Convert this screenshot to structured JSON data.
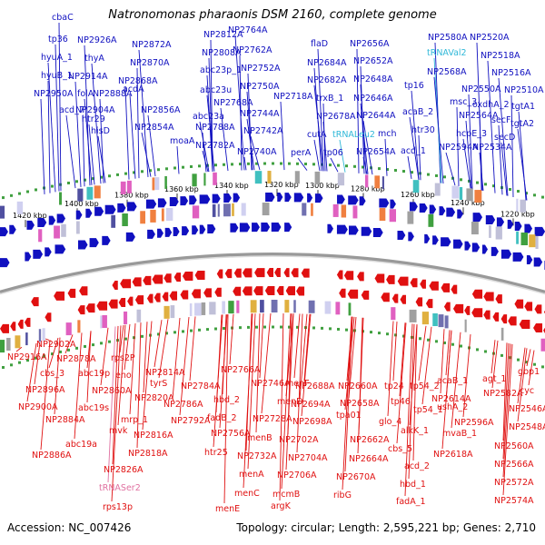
{
  "title": "Natronomonas pharaonis DSM 2160, complete genome",
  "footer": {
    "accession": "Accession: NC_007426",
    "summary": "Topology: circular; Length: 2,595,221 bp; Genes: 2,710"
  },
  "colors": {
    "forward_gene": "#1010c0",
    "reverse_gene": "#e01010",
    "trna": "#30b8d8",
    "trna_reverse": "#e070a0",
    "backbone": "#888888"
  },
  "kbp_ticks": [
    "1420 kbp",
    "1400 kbp",
    "1380 kbp",
    "1360 kbp",
    "1340 kbp",
    "1320 kbp",
    "1300 kbp",
    "1280 kbp",
    "1260 kbp",
    "1240 kbp",
    "1220 kbp"
  ],
  "top_labels": [
    "cbaC",
    "tp36",
    "NP2926A",
    "hyuA_1",
    "thyA",
    "hyuB_1",
    "NP2950A",
    "NP2914A",
    "folA",
    "acd_7",
    "NP2904A",
    "NP2888A",
    "htr29",
    "hisD",
    "NP2872A",
    "NP2870A",
    "NP2868A",
    "acdA",
    "NP2856A",
    "NP2854A",
    "NP2812A",
    "NP2808A",
    "abc23p_1",
    "abc23u",
    "abc23a",
    "moaA",
    "NP2788A",
    "NP2782A",
    "NP2768A",
    "NP2764A",
    "NP2762A",
    "NP2752A",
    "NP2750A",
    "NP2744A",
    "NP2742A",
    "NP2740A",
    "NP2718A",
    "flaD",
    "NP2684A",
    "NP2682A",
    "trxB_1",
    "NP2678A",
    "cutA",
    "tp06",
    "perA",
    "NP2656A",
    "NP2652A",
    "NP2648A",
    "NP2646A",
    "NP2644A",
    "mch",
    "NP2654A",
    "tRNALeu2",
    "tp16",
    "acaB_2",
    "htr30",
    "acd_1",
    "NP2580A",
    "tRNAVal2",
    "NP2568A",
    "msc_3",
    "NP2550A",
    "NP2564A",
    "hcpE_3",
    "NP2594A",
    "oxdhA_2",
    "NP2534A",
    "NP2520A",
    "NP2518A",
    "NP2516A",
    "NP2510A",
    "secF",
    "secD",
    "tgtA1",
    "tgtA2"
  ],
  "bottom_labels": [
    "NP2902A",
    "NP2916A",
    "NP2878A",
    "cbs_3",
    "abc19p",
    "NP2896A",
    "NP2860A",
    "NP2900A",
    "abc19s",
    "NP2884A",
    "abc19a",
    "NP2886A",
    "rps2P",
    "eno",
    "NP2814A",
    "tyrS",
    "NP2820A",
    "mrp_1",
    "mvk",
    "NP2816A",
    "NP2818A",
    "NP2826A",
    "tRNASer2",
    "rps13p",
    "NP2766A",
    "NP2784A",
    "NP2786A",
    "NP2792A",
    "hbd_2",
    "fadB_2",
    "NP2756A",
    "htr25",
    "NP2746A",
    "menF",
    "menD",
    "NP2728A",
    "menB",
    "NP2732A",
    "menA",
    "menC",
    "menE",
    "NP2688A",
    "NP2694A",
    "NP2698A",
    "NP2702A",
    "NP2704A",
    "NP2706A",
    "mcmB",
    "argK",
    "NP2660A",
    "NP2658A",
    "tpa01",
    "NP2662A",
    "NP2664A",
    "NP2670A",
    "ribG",
    "tp24",
    "tp46",
    "tp54_2",
    "tp54_1",
    "NP2614A",
    "glo_4",
    "alkK_1",
    "cbs_5",
    "acd_2",
    "hbd_1",
    "fadA_1",
    "NP2618A",
    "acaB_1",
    "ushA_2",
    "NP2596A",
    "mvaB_1",
    "agt_1",
    "NP2582A",
    "NP2546A",
    "NP2548A",
    "NP2560A",
    "NP2566A",
    "NP2572A",
    "NP2574A",
    "gbp1",
    "cyc"
  ]
}
